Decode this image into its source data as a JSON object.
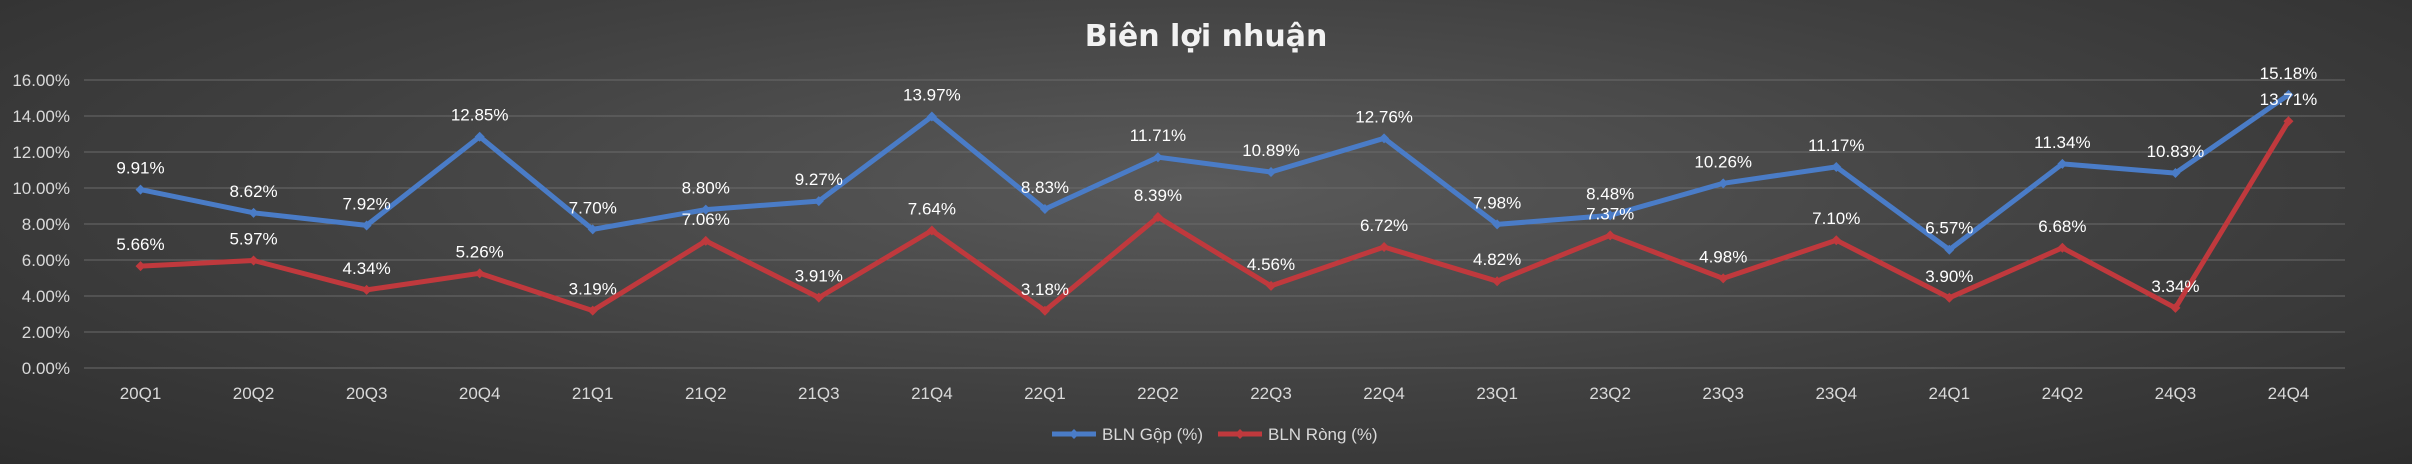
{
  "chart_data": {
    "type": "line",
    "title": "Biên lợi nhuận",
    "categories": [
      "20Q1",
      "20Q2",
      "20Q3",
      "20Q4",
      "21Q1",
      "21Q2",
      "21Q3",
      "21Q4",
      "22Q1",
      "22Q2",
      "22Q3",
      "22Q4",
      "23Q1",
      "23Q2",
      "23Q3",
      "23Q4",
      "24Q1",
      "24Q2",
      "24Q3",
      "24Q4"
    ],
    "y_ticks": [
      "0.00%",
      "2.00%",
      "4.00%",
      "6.00%",
      "8.00%",
      "10.00%",
      "12.00%",
      "14.00%",
      "16.00%"
    ],
    "ylim": [
      0,
      16
    ],
    "grid": true,
    "legend_position": "bottom",
    "series": [
      {
        "name": "BLN Gộp (%)",
        "color": "#4a7cc7",
        "values": [
          9.91,
          8.62,
          7.92,
          12.85,
          7.7,
          8.8,
          9.27,
          13.97,
          8.83,
          11.71,
          10.89,
          12.76,
          7.98,
          8.48,
          10.26,
          11.17,
          6.57,
          11.34,
          10.83,
          15.18
        ],
        "labels": [
          "9.91%",
          "8.62%",
          "7.92%",
          "12.85%",
          "7.70%",
          "8.80%",
          "9.27%",
          "13.97%",
          "8.83%",
          "11.71%",
          "10.89%",
          "12.76%",
          "7.98%",
          "8.48%",
          "10.26%",
          "11.17%",
          "6.57%",
          "11.34%",
          "10.83%",
          "15.18%"
        ]
      },
      {
        "name": "BLN Ròng (%)",
        "color": "#c0393d",
        "values": [
          5.66,
          5.97,
          4.34,
          5.26,
          3.19,
          7.06,
          3.91,
          7.64,
          3.18,
          8.39,
          4.56,
          6.72,
          4.82,
          7.37,
          4.98,
          7.1,
          3.9,
          6.68,
          3.34,
          13.71
        ],
        "labels": [
          "5.66%",
          "5.97%",
          "4.34%",
          "5.26%",
          "3.19%",
          "7.06%",
          "3.91%",
          "7.64%",
          "3.18%",
          "8.39%",
          "4.56%",
          "6.72%",
          "4.82%",
          "7.37%",
          "4.98%",
          "7.10%",
          "3.90%",
          "6.68%",
          "3.34%",
          "13.71%"
        ]
      }
    ]
  }
}
